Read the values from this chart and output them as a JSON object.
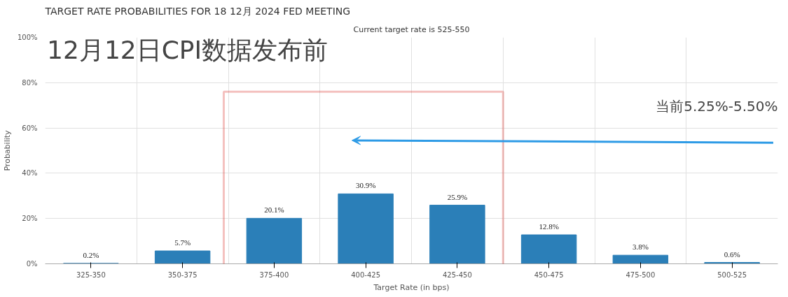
{
  "chart_data": {
    "type": "bar",
    "title": "TARGET RATE PROBABILITIES FOR 18 12月 2024 FED MEETING",
    "subtitle": "Current target rate is 525-550",
    "xlabel": "Target Rate (in bps)",
    "ylabel": "Probability",
    "categories": [
      "325-350",
      "350-375",
      "375-400",
      "400-425",
      "425-450",
      "450-475",
      "475-500",
      "500-525"
    ],
    "values": [
      0.2,
      5.7,
      20.1,
      30.9,
      25.9,
      12.8,
      3.8,
      0.6
    ],
    "color": "#2b7fb8",
    "value_labels": [
      "0.2%",
      "5.7%",
      "20.1%",
      "30.9%",
      "25.9%",
      "12.8%",
      "3.8%",
      "0.6%"
    ],
    "ylim": [
      0,
      100
    ],
    "yticks": [
      {
        "value": 0,
        "label": "0%"
      },
      {
        "value": 20,
        "label": "20%"
      },
      {
        "value": 40,
        "label": "40%"
      },
      {
        "value": 60,
        "label": "60%"
      },
      {
        "value": 80,
        "label": "80%"
      },
      {
        "value": 100,
        "label": "100%"
      }
    ],
    "grid": true,
    "annotations": [
      "12月12日CPI数据发布前",
      "当前5.25%-5.50%"
    ]
  }
}
